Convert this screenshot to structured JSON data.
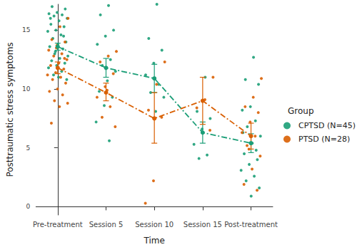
{
  "chart_data": {
    "type": "line",
    "x_label": "Time",
    "y_label": "Posttraumatic stress symptoms",
    "legend_title": "Group",
    "categories": [
      "Pre-treatment",
      "Session 5",
      "Session 10",
      "Session 15",
      "Post-treatment"
    ],
    "ylim": [
      -0.7,
      17.2
    ],
    "yticks": [
      0,
      5,
      10,
      15
    ],
    "grid": false,
    "legend": "right",
    "marker": "circle",
    "line_style": "dashdot",
    "series": [
      {
        "name": "CPTSD (N=45)",
        "color": "#1b9e77",
        "values": [
          13.6,
          11.8,
          10.9,
          6.3,
          5.4
        ],
        "error": [
          [
            13.3,
            13.9
          ],
          [
            11.0,
            12.6
          ],
          [
            9.7,
            12.1
          ],
          [
            5.4,
            7.2
          ],
          [
            4.6,
            6.2
          ]
        ],
        "points": [
          [
            17.3,
            17.0,
            16.8,
            16.5,
            16.4,
            16.3,
            16.2,
            16.0,
            15.8,
            15.5,
            15.3,
            15.0,
            14.9,
            14.6,
            14.3,
            14.0,
            13.8,
            13.6,
            13.4,
            13.0,
            12.8,
            12.6,
            12.4,
            12.2,
            12.0,
            11.8,
            11.5,
            11.2,
            10.8,
            11.0,
            16.0,
            14.5,
            13.2
          ],
          [
            17.1,
            16.3,
            15.0,
            14.5,
            13.8,
            12.5,
            12.0,
            11.5,
            10.7,
            9.8,
            9.3,
            8.6,
            7.2,
            5.6
          ],
          [
            17.2,
            14.3,
            13.3,
            12.2,
            11.2,
            10.4,
            9.7,
            9.3,
            8.1
          ],
          [
            11.0,
            8.1,
            7.5,
            6.6,
            5.3,
            4.4,
            4.1
          ],
          [
            12.7,
            10.8,
            10.4,
            8.5,
            8.2,
            7.3,
            6.8,
            6.0,
            5.4,
            4.5,
            4.0,
            3.6,
            3.1,
            2.6,
            2.2,
            1.6,
            0.9,
            6.3,
            4.8
          ]
        ]
      },
      {
        "name": "PTSD (N=28)",
        "color": "#d95f02",
        "values": [
          11.8,
          9.7,
          7.5,
          9.0,
          6.0
        ],
        "error": [
          [
            11.3,
            12.3
          ],
          [
            9.0,
            10.5
          ],
          [
            5.4,
            9.7
          ],
          [
            7.0,
            11.0
          ],
          [
            4.9,
            7.1
          ]
        ],
        "points": [
          [
            16.0,
            15.3,
            14.2,
            14.0,
            13.7,
            13.3,
            13.0,
            12.8,
            12.5,
            12.2,
            12.0,
            11.7,
            11.4,
            11.2,
            11.0,
            10.8,
            10.5,
            10.0,
            9.8,
            9.5,
            9.0,
            8.8,
            8.5,
            7.1,
            12.6,
            13.5
          ],
          [
            13.2,
            12.8,
            12.3,
            11.3,
            10.2,
            9.3,
            8.5,
            7.6,
            6.8,
            9.9
          ],
          [
            12.3,
            10.4,
            8.2,
            7.6,
            2.2,
            0.3
          ],
          [
            11.0,
            9.1,
            8.4,
            6.5
          ],
          [
            10.9,
            9.3,
            8.5,
            8.0,
            7.2,
            6.3,
            6.0,
            5.2,
            4.3,
            3.2,
            1.9,
            1.4,
            4.9
          ]
        ]
      }
    ]
  }
}
